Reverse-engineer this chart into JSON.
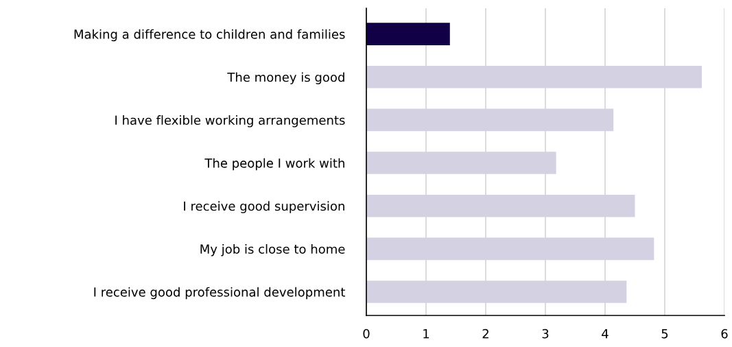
{
  "chart_data": {
    "type": "bar",
    "orientation": "horizontal",
    "categories": [
      "Making a difference to children and families",
      "The money is good",
      "I have flexible working arrangements",
      "The people I work with",
      "I receive good supervision",
      "My job is close to home",
      "I receive good professional development"
    ],
    "values": [
      1.4,
      5.62,
      4.14,
      3.18,
      4.5,
      4.82,
      4.36
    ],
    "colors": [
      "#110045",
      "#d4d2e2",
      "#d4d2e2",
      "#d4d2e2",
      "#d4d2e2",
      "#d4d2e2",
      "#d4d2e2"
    ],
    "xlim": [
      0,
      6
    ],
    "xticks": [
      0,
      1,
      2,
      3,
      4,
      5,
      6
    ],
    "grid": "x",
    "legend": false
  }
}
